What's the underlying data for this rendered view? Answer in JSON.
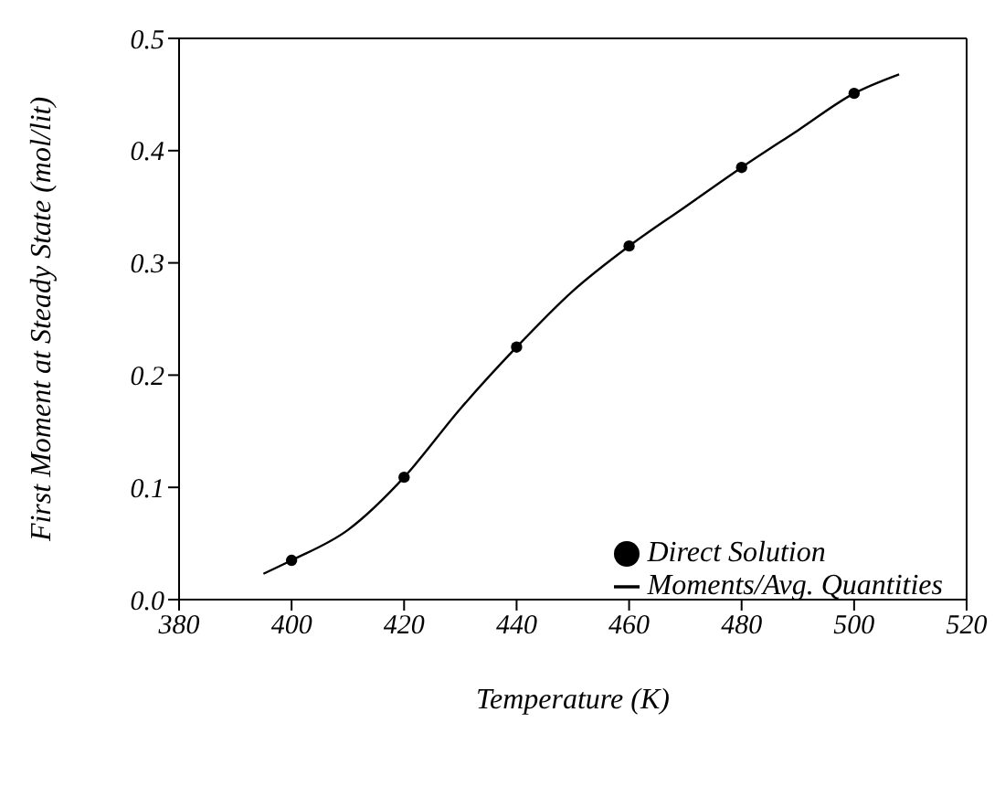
{
  "chart_data": {
    "type": "line",
    "xlabel": "Temperature (K)",
    "ylabel": "First Moment at Steady State (mol/lit)",
    "xlim": [
      380,
      520
    ],
    "xticks": [
      380,
      400,
      420,
      440,
      460,
      480,
      500,
      520
    ],
    "ylim": [
      0,
      0.5
    ],
    "yticks": [
      {
        "value": 0,
        "label": "0.0"
      },
      0.1,
      0.2,
      0.3,
      0.4,
      0.5
    ],
    "grid": false,
    "legend": "bottom right",
    "series": [
      {
        "name": "Direct Solution",
        "type": "scatter",
        "marker": "circle",
        "color": "#000000",
        "x": [
          400,
          420,
          440,
          460,
          480,
          500
        ],
        "values": [
          0.035,
          0.109,
          0.225,
          0.315,
          0.385,
          0.451
        ]
      },
      {
        "name": "Moments/Avg. Quantities",
        "type": "line",
        "marker": "none",
        "line_style": "solid",
        "color": "#000000",
        "x": [
          395,
          400,
          410,
          420,
          430,
          440,
          450,
          460,
          470,
          480,
          490,
          500,
          508
        ],
        "values": [
          0.023,
          0.035,
          0.062,
          0.109,
          0.17,
          0.225,
          0.275,
          0.315,
          0.35,
          0.385,
          0.418,
          0.451,
          0.468
        ]
      }
    ]
  }
}
